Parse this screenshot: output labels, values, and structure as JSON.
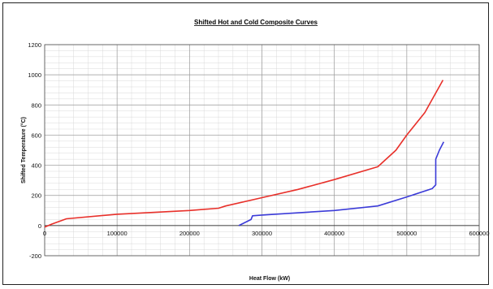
{
  "chart_data": {
    "type": "line",
    "title": "Shifted Hot and Cold Composite Curves",
    "xlabel": "Heat Flow (kW)",
    "ylabel": "Shifted Temperature (°C)",
    "xlim": [
      0,
      600000
    ],
    "ylim": [
      -200,
      1200
    ],
    "xticks": [
      0,
      100000,
      200000,
      300000,
      400000,
      500000,
      600000
    ],
    "yticks": [
      -200,
      0,
      200,
      400,
      600,
      800,
      1000,
      1200
    ],
    "grid": true,
    "legend": "none",
    "series": [
      {
        "color": "#e8302a",
        "points": [
          [
            0,
            -10
          ],
          [
            10000,
            10
          ],
          [
            30000,
            45
          ],
          [
            100000,
            75
          ],
          [
            200000,
            100
          ],
          [
            240000,
            115
          ],
          [
            250000,
            130
          ],
          [
            300000,
            185
          ],
          [
            350000,
            240
          ],
          [
            400000,
            305
          ],
          [
            460000,
            390
          ],
          [
            485000,
            500
          ],
          [
            500000,
            600
          ],
          [
            525000,
            750
          ],
          [
            550000,
            965
          ]
        ]
      },
      {
        "color": "#3b3bd8",
        "points": [
          [
            268000,
            0
          ],
          [
            285000,
            40
          ],
          [
            287000,
            65
          ],
          [
            300000,
            70
          ],
          [
            400000,
            100
          ],
          [
            460000,
            130
          ],
          [
            500000,
            190
          ],
          [
            535000,
            245
          ],
          [
            540000,
            270
          ],
          [
            540000,
            440
          ],
          [
            545000,
            500
          ],
          [
            551000,
            555
          ]
        ]
      }
    ]
  }
}
